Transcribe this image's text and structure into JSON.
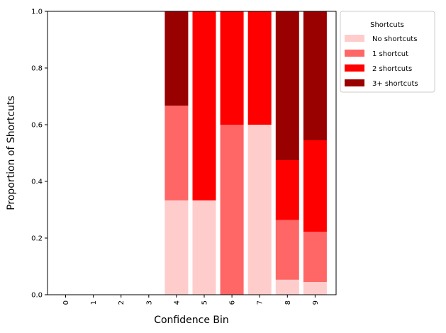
{
  "chart_data": {
    "type": "bar",
    "stacked": true,
    "categories": [
      "0",
      "1",
      "2",
      "3",
      "4",
      "5",
      "6",
      "7",
      "8",
      "9"
    ],
    "series": [
      {
        "name": "No shortcuts",
        "color": "#ffcccc",
        "values": [
          0,
          0,
          0,
          0,
          0.333,
          0.333,
          0.0,
          0.6,
          0.053,
          0.045
        ]
      },
      {
        "name": "1 shortcut",
        "color": "#ff6666",
        "values": [
          0,
          0,
          0,
          0,
          0.334,
          0.0,
          0.6,
          0.0,
          0.211,
          0.177
        ]
      },
      {
        "name": "2 shortcuts",
        "color": "#ff0000",
        "values": [
          0,
          0,
          0,
          0,
          0.0,
          0.667,
          0.4,
          0.4,
          0.211,
          0.323
        ]
      },
      {
        "name": "3+ shortcuts",
        "color": "#990000",
        "values": [
          0,
          0,
          0,
          0,
          0.333,
          0.0,
          0.0,
          0.0,
          0.525,
          0.455
        ]
      }
    ],
    "xlabel": "Confidence Bin",
    "ylabel": "Proportion of Shortcuts",
    "ylim": [
      0,
      1
    ],
    "yticks": [
      "0.0",
      "0.2",
      "0.4",
      "0.6",
      "0.8",
      "1.0"
    ],
    "legend_title": "Shortcuts",
    "legend_position": "outside-top-right",
    "grid": false
  }
}
